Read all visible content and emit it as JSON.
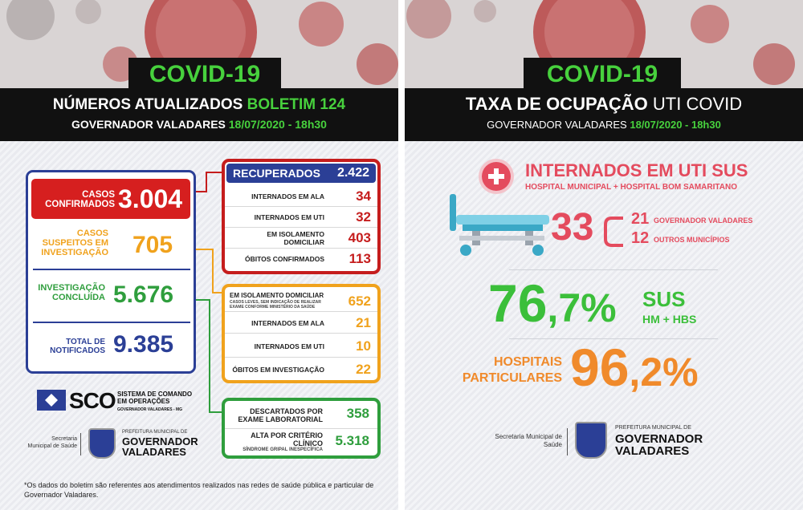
{
  "left": {
    "title": "COVID-19",
    "header_line1_prefix": "NÚMEROS ATUALIZADOS",
    "header_line1_highlight": "BOLETIM 124",
    "header_line2_prefix": "GOVERNADOR VALADARES",
    "header_line2_date": "18/07/2020 - 18h30",
    "stats": {
      "confirmed_label": "CASOS CONFIRMADOS",
      "confirmed_value": "3.004",
      "suspects_label": "CASOS SUSPEITOS EM INVESTIGAÇÃO",
      "suspects_value": "705",
      "investigation_label": "INVESTIGAÇÃO CONCLUÍDA",
      "investigation_value": "5.676",
      "notified_label": "TOTAL DE NOTIFICADOS",
      "notified_value": "9.385"
    },
    "recovered": {
      "header_label": "RECUPERADOS",
      "header_value": "2.422",
      "rows": [
        {
          "label": "INTERNADOS EM ALA",
          "value": "34"
        },
        {
          "label": "INTERNADOS EM UTI",
          "value": "32"
        },
        {
          "label": "EM ISOLAMENTO DOMICILIAR",
          "value": "403"
        },
        {
          "label": "ÓBITOS CONFIRMADOS",
          "value": "113"
        }
      ]
    },
    "suspects_detail": {
      "isolation_label": "EM ISOLAMENTO DOMICILIAR",
      "isolation_sublabel": "CASOS LEVES, SEM INDICAÇÃO DE REALIZAR EXAME CONFORME MINISTÉRIO DA SAÚDE",
      "isolation_value": "652",
      "rows": [
        {
          "label": "INTERNADOS EM ALA",
          "value": "21"
        },
        {
          "label": "INTERNADOS EM UTI",
          "value": "10"
        },
        {
          "label": "ÓBITOS EM INVESTIGAÇÃO",
          "value": "22"
        }
      ]
    },
    "concluded_detail": {
      "discarded_label": "DESCARTADOS POR EXAME LABORATORIAL",
      "discarded_value": "358",
      "discharge_label": "ALTA POR CRITÉRIO CLÍNICO",
      "discharge_sublabel": "SÍNDROME GRIPAL INESPECÍFICA",
      "discharge_value": "5.318"
    },
    "sco": {
      "abbr": "SCO",
      "name_line1": "SISTEMA DE COMANDO",
      "name_line2": "EM OPERAÇÕES",
      "sub": "GOVERNADOR VALADARES - MG"
    },
    "secretaria": "Secretaria Municipal de Saúde",
    "prefeitura_small": "PREFEITURA MUNICIPAL DE",
    "prefeitura_line1": "GOVERNADOR",
    "prefeitura_line2": "VALADARES",
    "footnote": "*Os dados do boletim são referentes aos atendimentos realizados nas redes de saúde pública e particular de Governador Valadares."
  },
  "right": {
    "title": "COVID-19",
    "header_bold": "TAXA DE OCUPAÇÃO",
    "header_light": "UTI COVID",
    "header_line2_prefix": "GOVERNADOR VALADARES",
    "header_line2_date": "18/07/2020 - 18h30",
    "uti_title": "INTERNADOS EM UTI SUS",
    "uti_subtitle": "HOSPITAL MUNICIPAL + HOSPITAL BOM SAMARITANO",
    "uti_total": "33",
    "gv_value": "21",
    "gv_label": "GOVERNADOR VALADARES",
    "other_value": "12",
    "other_label": "OUTROS MUNICÍPIOS",
    "sus_int": "76",
    "sus_dec": ",7%",
    "sus_label": "SUS",
    "sus_sub": "HM + HBS",
    "priv_label_line1": "HOSPITAIS",
    "priv_label_line2": "PARTICULARES",
    "priv_int": "96",
    "priv_dec": ",2%",
    "secretaria": "Secretaria Municipal de Saúde",
    "prefeitura_small": "PREFEITURA MUNICIPAL DE",
    "prefeitura_line1": "GOVERNADOR",
    "prefeitura_line2": "VALADARES"
  },
  "colors": {
    "green": "#47d13d",
    "red": "#c51d1d",
    "orange": "#f0a21d",
    "navy": "#2b3f96",
    "pink": "#e44b5e",
    "teal": "#3aa8c6"
  }
}
